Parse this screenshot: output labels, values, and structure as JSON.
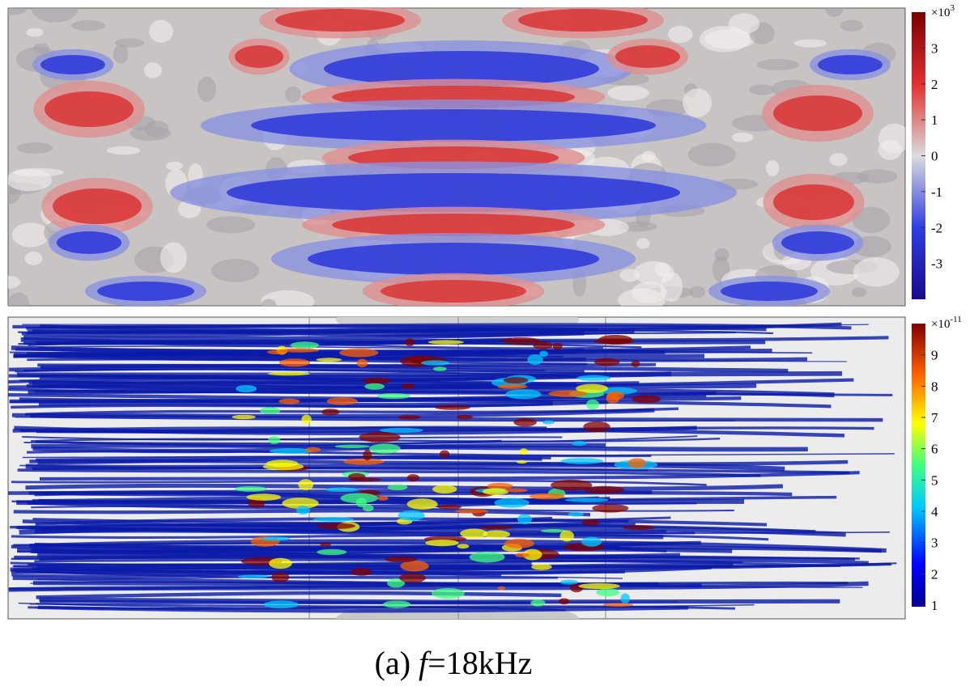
{
  "figure": {
    "panels": [
      {
        "colorbar": {
          "multiplier": "×10",
          "exponent": "3",
          "ticks": [
            3,
            2,
            1,
            0,
            -1,
            -2,
            -3
          ],
          "range": [
            -4,
            4
          ]
        }
      },
      {
        "colorbar": {
          "multiplier": "×10",
          "exponent": "-11",
          "ticks": [
            9,
            8,
            7,
            6,
            5,
            4,
            3,
            2,
            1
          ],
          "range": [
            0.95,
            10
          ]
        }
      }
    ],
    "caption": {
      "label": "(a) ",
      "variable": "f",
      "value": "=18kHz"
    }
  }
}
